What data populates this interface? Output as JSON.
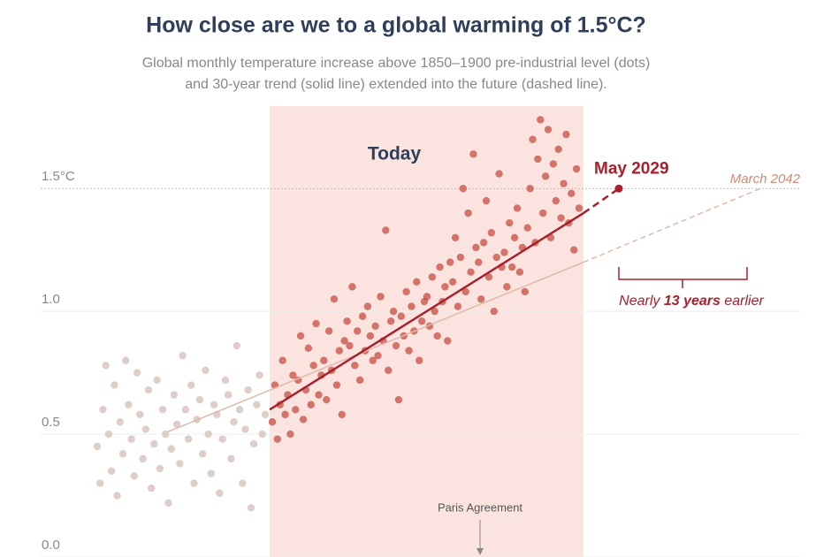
{
  "chart_data": {
    "type": "scatter",
    "title": "How close are we to a global warming of 1.5°C?",
    "subtitle": [
      "Global monthly temperature increase above 1850–1900 pre-industrial level (dots)",
      "and 30-year trend (solid line) extended into the future (dashed line)."
    ],
    "ylim": [
      0,
      1.85
    ],
    "yticks": [
      {
        "value": 0,
        "label": "0.0"
      },
      0.5,
      {
        "value": 1,
        "label": "1.0"
      },
      {
        "value": 1.5,
        "label": "1.5°C"
      }
    ],
    "series": [
      {
        "color": "#d9c4bd",
        "values": [
          0.45,
          0.3,
          0.6,
          0.78,
          0.5,
          0.35,
          0.7,
          0.25,
          0.55,
          0.42,
          0.8,
          0.62,
          0.48,
          0.33,
          0.75,
          0.58,
          0.4,
          0.52,
          0.68,
          0.28,
          0.46,
          0.72,
          0.36,
          0.6,
          0.5,
          0.22,
          0.44,
          0.66,
          0.54,
          0.38,
          0.82,
          0.6,
          0.48,
          0.7,
          0.3,
          0.56,
          0.64,
          0.42,
          0.76,
          0.5,
          0.34,
          0.62,
          0.58,
          0.26,
          0.48,
          0.72,
          0.66,
          0.4,
          0.55,
          0.86,
          0.6,
          0.3,
          0.52,
          0.68,
          0.2,
          0.46,
          0.62,
          0.74,
          0.5,
          0.58
        ]
      },
      {
        "color": "#c4473b",
        "values": [
          0.55,
          0.7,
          0.48,
          0.62,
          0.8,
          0.58,
          0.66,
          0.5,
          0.74,
          0.6,
          0.72,
          0.9,
          0.56,
          0.68,
          0.85,
          0.62,
          0.78,
          0.95,
          0.66,
          0.74,
          0.8,
          0.64,
          0.92,
          0.76,
          1.05,
          0.7,
          0.84,
          0.58,
          0.88,
          0.96,
          0.86,
          1.1,
          0.78,
          0.92,
          0.72,
          0.98,
          0.84,
          1.02,
          0.9,
          0.8,
          0.94,
          0.82,
          1.06,
          0.88,
          1.33,
          0.76,
          0.96,
          1.0,
          0.86,
          0.64,
          0.98,
          0.9,
          1.08,
          0.84,
          1.02,
          0.92,
          1.12,
          0.8,
          0.96,
          1.04,
          1.06,
          0.94,
          1.14,
          1.0,
          0.9,
          1.18,
          1.04,
          1.1,
          0.88,
          1.2,
          1.12,
          1.3,
          1.02,
          1.22,
          1.5,
          1.08,
          1.4,
          1.16,
          1.64,
          1.26,
          1.2,
          1.05,
          1.28,
          1.45,
          1.14,
          1.32,
          1.0,
          1.22,
          1.56,
          1.18,
          1.24,
          1.1,
          1.36,
          1.18,
          1.3,
          1.42,
          1.16,
          1.26,
          1.08,
          1.34,
          1.5,
          1.7,
          1.28,
          1.62,
          1.78,
          1.4,
          1.55,
          1.74,
          1.3,
          1.6,
          1.45,
          1.66,
          1.38,
          1.52,
          1.72,
          1.36,
          1.48,
          1.25,
          1.58,
          1.42
        ]
      }
    ],
    "trends": [
      {
        "color": "#e0b9a8",
        "values": [
          0.51,
          1.2,
          1.5
        ],
        "label": "March 2042"
      },
      {
        "color": "#a8202b",
        "values": [
          0.6,
          1.4,
          1.5
        ],
        "label": "May 2029"
      }
    ],
    "annotations": {
      "period": "Today",
      "event": "Paris Agreement",
      "gap": [
        "Nearly",
        "13 years",
        "earlier"
      ]
    }
  }
}
